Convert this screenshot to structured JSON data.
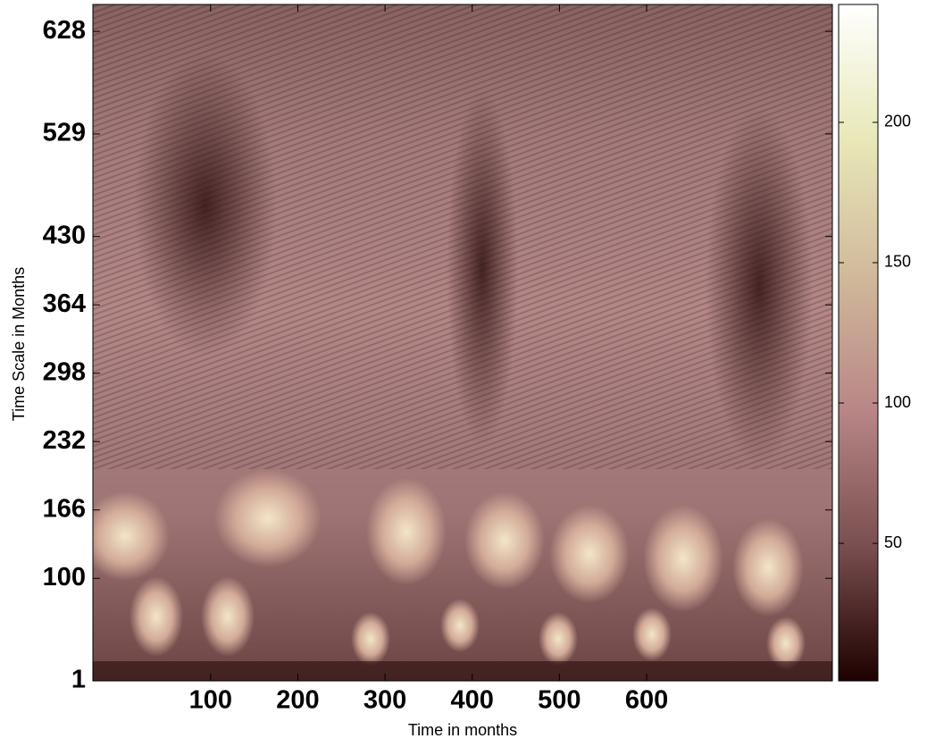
{
  "chart_data": {
    "type": "heatmap",
    "x_label": "Time in months",
    "y_label": "Time Scale in Months",
    "xlim": [
      -35,
      813
    ],
    "xticks": [
      100,
      200,
      300,
      400,
      500,
      600
    ],
    "ylim": [
      1,
      654
    ],
    "yticks": [
      1,
      100,
      166,
      232,
      298,
      364,
      430,
      529,
      628
    ],
    "colorbar": {
      "lim": [
        1,
        242
      ],
      "ticks": [
        50,
        100,
        150,
        200
      ],
      "colormap": [
        "#1e0000",
        "#7a4f4f",
        "#b88686",
        "#d1b99b",
        "#e8e8b8",
        "#ffffff"
      ]
    }
  }
}
